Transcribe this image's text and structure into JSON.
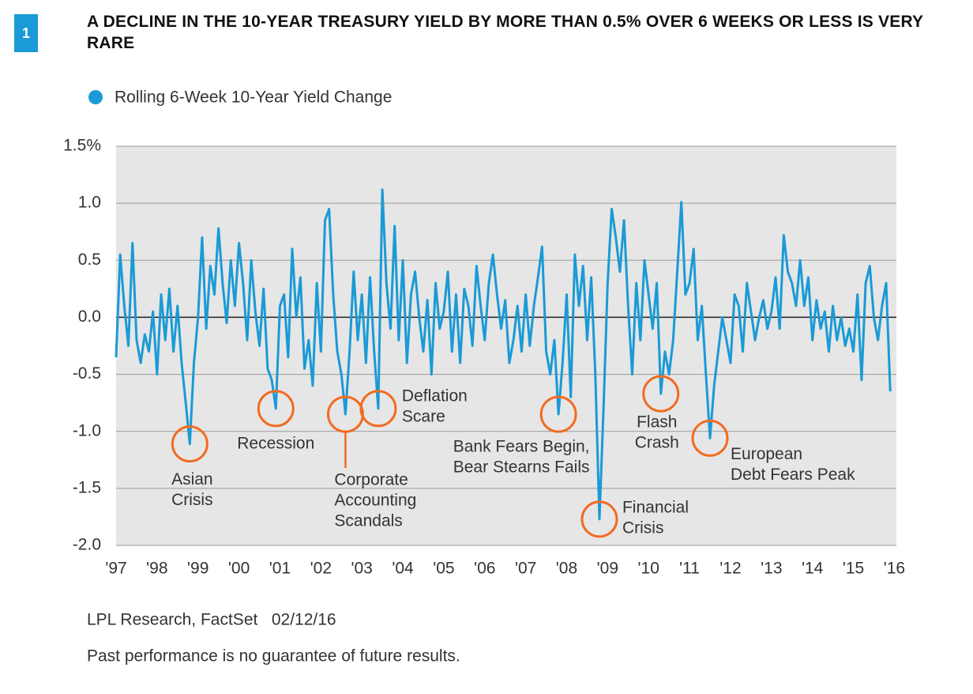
{
  "badge": "1",
  "chart_data": {
    "type": "line",
    "title": "A DECLINE IN THE 10-YEAR TREASURY YIELD BY MORE THAN 0.5% OVER 6 WEEKS OR LESS IS VERY RARE",
    "source": "LPL Research, FactSet   02/12/16",
    "note": "Past performance is no guarantee of future results.",
    "x": [
      1997.0,
      1997.1,
      1997.2,
      1997.3,
      1997.4,
      1997.5,
      1997.6,
      1997.7,
      1997.8,
      1997.9,
      1998.0,
      1998.1,
      1998.2,
      1998.3,
      1998.4,
      1998.5,
      1998.6,
      1998.7,
      1998.8,
      1998.9,
      1999.0,
      1999.1,
      1999.2,
      1999.3,
      1999.4,
      1999.5,
      1999.6,
      1999.7,
      1999.8,
      1999.9,
      2000.0,
      2000.1,
      2000.2,
      2000.3,
      2000.4,
      2000.5,
      2000.6,
      2000.7,
      2000.8,
      2000.9,
      2001.0,
      2001.1,
      2001.2,
      2001.3,
      2001.4,
      2001.5,
      2001.6,
      2001.7,
      2001.8,
      2001.9,
      2002.0,
      2002.1,
      2002.2,
      2002.3,
      2002.4,
      2002.5,
      2002.6,
      2002.7,
      2002.8,
      2002.9,
      2003.0,
      2003.1,
      2003.2,
      2003.3,
      2003.4,
      2003.5,
      2003.6,
      2003.7,
      2003.8,
      2003.9,
      2004.0,
      2004.1,
      2004.2,
      2004.3,
      2004.4,
      2004.5,
      2004.6,
      2004.7,
      2004.8,
      2004.9,
      2005.0,
      2005.1,
      2005.2,
      2005.3,
      2005.4,
      2005.5,
      2005.6,
      2005.7,
      2005.8,
      2005.9,
      2006.0,
      2006.1,
      2006.2,
      2006.3,
      2006.4,
      2006.5,
      2006.6,
      2006.7,
      2006.8,
      2006.9,
      2007.0,
      2007.1,
      2007.2,
      2007.3,
      2007.4,
      2007.5,
      2007.6,
      2007.7,
      2007.8,
      2007.9,
      2008.0,
      2008.1,
      2008.2,
      2008.3,
      2008.4,
      2008.5,
      2008.6,
      2008.7,
      2008.8,
      2008.9,
      2009.0,
      2009.1,
      2009.2,
      2009.3,
      2009.4,
      2009.5,
      2009.6,
      2009.7,
      2009.8,
      2009.9,
      2010.0,
      2010.1,
      2010.2,
      2010.3,
      2010.4,
      2010.5,
      2010.6,
      2010.7,
      2010.8,
      2010.9,
      2011.0,
      2011.1,
      2011.2,
      2011.3,
      2011.4,
      2011.5,
      2011.6,
      2011.7,
      2011.8,
      2011.9,
      2012.0,
      2012.1,
      2012.2,
      2012.3,
      2012.4,
      2012.5,
      2012.6,
      2012.7,
      2012.8,
      2012.9,
      2013.0,
      2013.1,
      2013.2,
      2013.3,
      2013.4,
      2013.5,
      2013.6,
      2013.7,
      2013.8,
      2013.9,
      2014.0,
      2014.1,
      2014.2,
      2014.3,
      2014.4,
      2014.5,
      2014.6,
      2014.7,
      2014.8,
      2014.9,
      2015.0,
      2015.1,
      2015.2,
      2015.3,
      2015.4,
      2015.5,
      2015.6,
      2015.7,
      2015.8,
      2015.9
    ],
    "series": [
      {
        "name": "Rolling 6-Week 10-Year Yield Change",
        "color": "#1a9ad6",
        "values": [
          -0.35,
          0.55,
          0.1,
          -0.25,
          0.65,
          -0.2,
          -0.4,
          -0.15,
          -0.3,
          0.05,
          -0.5,
          0.2,
          -0.2,
          0.25,
          -0.3,
          0.1,
          -0.4,
          -0.75,
          -1.11,
          -0.4,
          0.0,
          0.7,
          -0.1,
          0.45,
          0.2,
          0.78,
          0.3,
          -0.05,
          0.5,
          0.1,
          0.65,
          0.3,
          -0.2,
          0.5,
          0.05,
          -0.25,
          0.25,
          -0.45,
          -0.55,
          -0.8,
          0.1,
          0.2,
          -0.35,
          0.6,
          0.0,
          0.35,
          -0.45,
          -0.2,
          -0.6,
          0.3,
          -0.3,
          0.85,
          0.95,
          0.2,
          -0.3,
          -0.5,
          -0.85,
          -0.3,
          0.4,
          -0.2,
          0.2,
          -0.4,
          0.35,
          -0.3,
          -0.8,
          1.12,
          0.3,
          -0.1,
          0.8,
          -0.2,
          0.5,
          -0.4,
          0.2,
          0.4,
          0.0,
          -0.3,
          0.15,
          -0.5,
          0.3,
          -0.1,
          0.05,
          0.4,
          -0.3,
          0.2,
          -0.4,
          0.25,
          0.1,
          -0.25,
          0.45,
          0.1,
          -0.2,
          0.3,
          0.55,
          0.2,
          -0.1,
          0.15,
          -0.4,
          -0.2,
          0.1,
          -0.3,
          0.2,
          -0.25,
          0.1,
          0.35,
          0.62,
          -0.3,
          -0.5,
          -0.2,
          -0.85,
          -0.4,
          0.2,
          -0.7,
          0.55,
          0.1,
          0.45,
          -0.2,
          0.35,
          -0.5,
          -1.77,
          -0.8,
          0.3,
          0.95,
          0.7,
          0.4,
          0.85,
          0.1,
          -0.5,
          0.3,
          -0.2,
          0.5,
          0.2,
          -0.1,
          0.3,
          -0.67,
          -0.3,
          -0.5,
          -0.2,
          0.4,
          1.01,
          0.2,
          0.3,
          0.6,
          -0.2,
          0.1,
          -0.5,
          -1.06,
          -0.6,
          -0.3,
          0.0,
          -0.2,
          -0.4,
          0.2,
          0.1,
          -0.3,
          0.3,
          0.05,
          -0.2,
          0.0,
          0.15,
          -0.1,
          0.05,
          0.35,
          -0.1,
          0.72,
          0.4,
          0.3,
          0.1,
          0.5,
          0.1,
          0.35,
          -0.2,
          0.15,
          -0.1,
          0.05,
          -0.3,
          0.1,
          -0.2,
          0.0,
          -0.25,
          -0.1,
          -0.3,
          0.2,
          -0.55,
          0.3,
          0.45,
          0.0,
          -0.2,
          0.1,
          0.3,
          -0.65
        ]
      }
    ],
    "xlim": [
      1997.0,
      2016.05
    ],
    "xticks": [
      {
        "value": 1997,
        "label": "'97"
      },
      {
        "value": 1998,
        "label": "'98"
      },
      {
        "value": 1999,
        "label": "'99"
      },
      {
        "value": 2000,
        "label": "'00"
      },
      {
        "value": 2001,
        "label": "'01"
      },
      {
        "value": 2002,
        "label": "'02"
      },
      {
        "value": 2003,
        "label": "'03"
      },
      {
        "value": 2004,
        "label": "'04"
      },
      {
        "value": 2005,
        "label": "'05"
      },
      {
        "value": 2006,
        "label": "'06"
      },
      {
        "value": 2007,
        "label": "'07"
      },
      {
        "value": 2008,
        "label": "'08"
      },
      {
        "value": 2009,
        "label": "'09"
      },
      {
        "value": 2010,
        "label": "'10"
      },
      {
        "value": 2011,
        "label": "'11"
      },
      {
        "value": 2012,
        "label": "'12"
      },
      {
        "value": 2013,
        "label": "'13"
      },
      {
        "value": 2014,
        "label": "'14"
      },
      {
        "value": 2015,
        "label": "'15"
      },
      {
        "value": 2016,
        "label": "'16"
      }
    ],
    "ylim": [
      -2.0,
      1.5
    ],
    "yticks": [
      {
        "value": -2.0,
        "label": "-2.0"
      },
      -1.5,
      {
        "value": -1.0,
        "label": "-1.0"
      },
      -0.5,
      {
        "value": 0.0,
        "label": "0.0"
      },
      0.5,
      {
        "value": 1.0,
        "label": "1.0"
      },
      {
        "value": 1.5,
        "label": "1.5%"
      }
    ],
    "grid": true,
    "annotations": [
      {
        "lines": [
          "Asian",
          "Crisis"
        ],
        "x": 1998.8,
        "y": -1.11
      },
      {
        "lines": [
          "Recession"
        ],
        "x": 2000.9,
        "y": -0.8
      },
      {
        "lines": [
          "Corporate",
          "Accounting",
          "Scandals"
        ],
        "x": 2002.6,
        "y": -0.85
      },
      {
        "lines": [
          "Deflation",
          "Scare"
        ],
        "x": 2003.4,
        "y": -0.8
      },
      {
        "lines": [
          "Bank Fears Begin,",
          "Bear Stearns Fails"
        ],
        "x": 2007.8,
        "y": -0.85
      },
      {
        "lines": [
          "Financial",
          "Crisis"
        ],
        "x": 2008.8,
        "y": -1.77
      },
      {
        "lines": [
          "Flash",
          "Crash"
        ],
        "x": 2010.3,
        "y": -0.67
      },
      {
        "lines": [
          "European",
          "Debt Fears Peak"
        ],
        "x": 2011.5,
        "y": -1.06
      }
    ],
    "annotation_color": "#f26b21"
  }
}
